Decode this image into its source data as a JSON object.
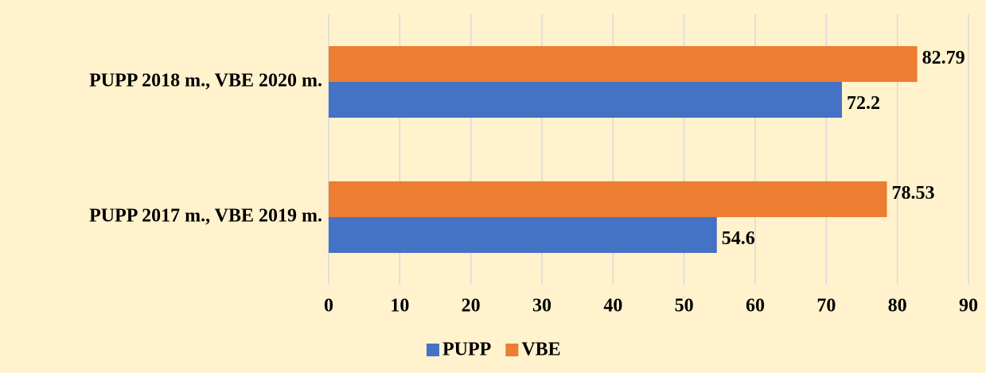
{
  "chart_data": {
    "type": "bar",
    "orientation": "horizontal",
    "categories": [
      "PUPP 2018 m., VBE 2020 m.",
      "PUPP 2017 m., VBE 2019 m."
    ],
    "series": [
      {
        "name": "PUPP",
        "color": "#4472c4",
        "values": [
          72.2,
          54.6
        ]
      },
      {
        "name": "VBE",
        "color": "#ed7d31",
        "values": [
          82.79,
          78.53
        ]
      }
    ],
    "xlim": [
      0,
      90
    ],
    "xticks": [
      0,
      10,
      20,
      30,
      40,
      50,
      60,
      70,
      80,
      90
    ],
    "grid": true,
    "legend": "bottom"
  }
}
